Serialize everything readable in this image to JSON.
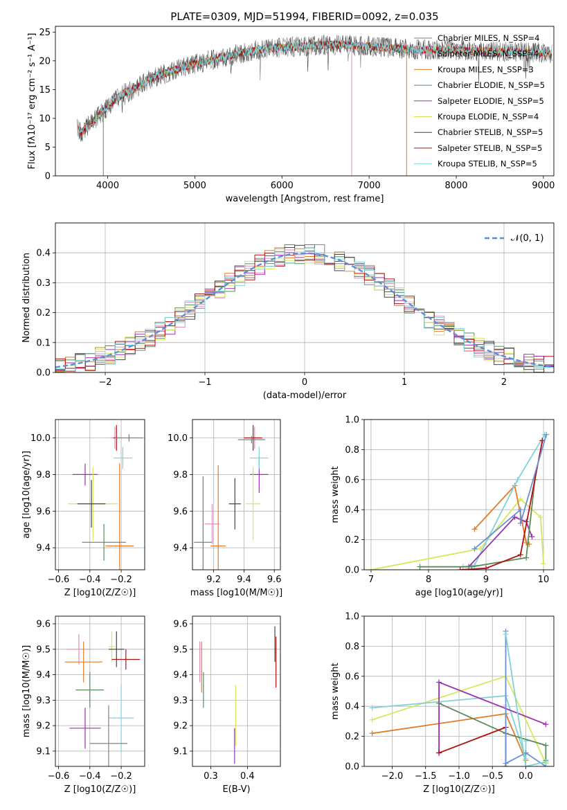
{
  "figure": {
    "title": "PLATE=0309, MJD=51994, FIBERID=0092, z=0.035"
  },
  "series_colors": [
    "#808080",
    "#e78ac3",
    "#e07b25",
    "#5a8a5a",
    "#9b30b0",
    "#d4e85a",
    "#444444",
    "#b01010",
    "#7fd3d8"
  ],
  "chart_data": [
    {
      "type": "line",
      "panel": "spectrum",
      "xlabel": "wavelength [Angstrom, rest frame]",
      "ylabel": "Flux [fλ10⁻¹⁷ erg cm⁻² s⁻¹ A⁻¹]",
      "xlim": [
        3400,
        9120
      ],
      "ylim": [
        0,
        26
      ],
      "xticks": [
        4000,
        5000,
        6000,
        7000,
        8000,
        9000
      ],
      "yticks": [
        0,
        5,
        10,
        15,
        20,
        25
      ],
      "continuum": {
        "x": [
          3650,
          3700,
          3800,
          3900,
          4000,
          4100,
          4200,
          4300,
          4400,
          4500,
          4700,
          4900,
          5100,
          5300,
          5500,
          5700,
          5900,
          6100,
          6300,
          6500,
          6700,
          6900,
          7100,
          7300,
          7500,
          7700,
          8000,
          8500,
          9000,
          9100
        ],
        "y": [
          8.5,
          7.5,
          9.0,
          10.5,
          12.0,
          13.5,
          14.5,
          15.0,
          16.0,
          17.0,
          18.0,
          19.0,
          19.8,
          20.5,
          21.2,
          21.8,
          22.2,
          22.4,
          22.6,
          22.8,
          22.8,
          22.6,
          22.4,
          22.2,
          22.0,
          21.9,
          21.8,
          21.6,
          21.4,
          21.3
        ]
      },
      "legend": [
        "Chabrier MILES, N_SSP=4",
        "Salpeter MILES, N_SSP=4",
        "Kroupa MILES, N_SSP=3",
        "Chabrier ELODIE, N_SSP=5",
        "Salpeter ELODIE, N_SSP=5",
        "Kroupa ELODIE, N_SSP=4",
        "Chabrier STELIB, N_SSP=5",
        "Salpeter STELIB, N_SSP=5",
        "Kroupa STELIB, N_SSP=5"
      ]
    },
    {
      "type": "line",
      "panel": "residuals",
      "xlabel": "(data-model)/error",
      "ylabel": "Normed distribution",
      "xlim": [
        -2.5,
        2.5
      ],
      "ylim": [
        0,
        0.5
      ],
      "xticks": [
        -2,
        -1,
        0,
        1,
        2
      ],
      "yticks": [
        0.0,
        0.1,
        0.2,
        0.3,
        0.4
      ],
      "legend": [
        "𝒩(0, 1)"
      ],
      "gaussian": {
        "mean": 0,
        "sigma": 1
      }
    },
    {
      "type": "scatter",
      "panel": "age-vs-Z",
      "xlabel": "Z [log10(Z/Z☉)]",
      "ylabel": "age  [log10(age/yr)]",
      "xlim": [
        -0.62,
        -0.05
      ],
      "ylim": [
        9.28,
        10.1
      ],
      "xticks": [
        -0.6,
        -0.4,
        -0.2
      ],
      "yticks": [
        9.4,
        9.6,
        9.8,
        10.0
      ],
      "points": [
        {
          "x": -0.24,
          "y": 10.0,
          "ex": 0.03,
          "ey": 0.06
        },
        {
          "x": -0.21,
          "y": 9.41,
          "ex": 0.09,
          "ey": 0.45
        },
        {
          "x": -0.31,
          "y": 9.43,
          "ex": 0.14,
          "ey": 0.1
        },
        {
          "x": -0.43,
          "y": 9.8,
          "ex": 0.08,
          "ey": 0.06
        },
        {
          "x": -0.38,
          "y": 9.64,
          "ex": 0.16,
          "ey": 0.2
        },
        {
          "x": -0.39,
          "y": 9.64,
          "ex": 0.09,
          "ey": 0.13
        },
        {
          "x": -0.23,
          "y": 10.0,
          "ex": 0.02,
          "ey": 0.07
        },
        {
          "x": -0.19,
          "y": 9.89,
          "ex": 0.06,
          "ey": 0.06
        },
        {
          "x": -0.15,
          "y": 10.0,
          "ex": 0.09,
          "ey": 0.02
        }
      ]
    },
    {
      "type": "scatter",
      "panel": "age-vs-mass",
      "xlabel": "mass [log10(M/M☉)]",
      "ylabel": "",
      "xlim": [
        9.06,
        9.64
      ],
      "ylim": [
        9.28,
        10.1
      ],
      "xticks": [
        9.2,
        9.4,
        9.6
      ],
      "yticks": [
        9.4,
        9.6,
        9.8,
        10.0
      ],
      "points": [
        {
          "x": 9.47,
          "y": 10.0,
          "ex": 0.02,
          "ey": 0.06
        },
        {
          "x": 9.23,
          "y": 9.41,
          "ex": 0.05,
          "ey": 0.44
        },
        {
          "x": 9.13,
          "y": 9.43,
          "ex": 0.06,
          "ey": 0.36
        },
        {
          "x": 9.5,
          "y": 9.8,
          "ex": 0.06,
          "ey": 0.1
        },
        {
          "x": 9.46,
          "y": 9.64,
          "ex": 0.05,
          "ey": 0.2
        },
        {
          "x": 9.34,
          "y": 9.64,
          "ex": 0.04,
          "ey": 0.14
        },
        {
          "x": 9.46,
          "y": 10.0,
          "ex": 0.06,
          "ey": 0.07
        },
        {
          "x": 9.5,
          "y": 9.89,
          "ex": 0.06,
          "ey": 0.06
        },
        {
          "x": 9.45,
          "y": 9.99,
          "ex": 0.09,
          "ey": 0.02
        },
        {
          "x": 9.19,
          "y": 9.53,
          "ex": 0.05,
          "ey": 0.11
        }
      ]
    },
    {
      "type": "line",
      "panel": "mass-weight-vs-age",
      "xlabel": "age  [log10(age/yr)]",
      "ylabel": "mass weight",
      "xlim": [
        6.88,
        10.18
      ],
      "ylim": [
        0,
        1
      ],
      "xticks": [
        7,
        8,
        9,
        10
      ],
      "yticks": [
        0.0,
        0.2,
        0.4,
        0.6,
        0.8,
        1.0
      ],
      "series": [
        {
          "x": [
            7.0,
            8.9,
            9.6,
            9.95,
            10.0
          ],
          "y": [
            0.0,
            0.14,
            0.47,
            0.35,
            0.04
          ]
        },
        {
          "x": [
            8.8,
            9.5,
            9.7,
            9.75
          ],
          "y": [
            0.27,
            0.56,
            0.18,
            0.17
          ]
        },
        {
          "x": [
            8.6,
            8.8,
            9.55,
            10.02
          ],
          "y": [
            0.02,
            0.03,
            0.6,
            0.9
          ]
        },
        {
          "x": [
            8.7,
            9.5,
            9.7,
            9.8
          ],
          "y": [
            0.02,
            0.35,
            0.32,
            0.22
          ]
        },
        {
          "x": [
            7.85,
            8.75,
            9.7,
            9.85
          ],
          "y": [
            0.02,
            0.02,
            0.08,
            0.6
          ]
        },
        {
          "x": [
            8.55,
            9.0,
            9.6,
            9.98
          ],
          "y": [
            0.0,
            0.01,
            0.1,
            0.86
          ]
        },
        {
          "x": [
            8.8,
            9.6,
            9.6,
            10.05
          ],
          "y": [
            0.14,
            0.4,
            0.31,
            0.9
          ]
        }
      ]
    },
    {
      "type": "scatter",
      "panel": "mass-vs-Z",
      "xlabel": "Z [log10(Z/Z☉)]",
      "ylabel": "mass [log10(M/M☉)]",
      "xlim": [
        -0.62,
        -0.05
      ],
      "ylim": [
        9.04,
        9.63
      ],
      "xticks": [
        -0.6,
        -0.4,
        -0.2
      ],
      "yticks": [
        9.1,
        9.2,
        9.3,
        9.4,
        9.5,
        9.6
      ],
      "points": [
        {
          "x": -0.47,
          "y": 9.5,
          "ex": 0.08,
          "ey": 0.06
        },
        {
          "x": -0.44,
          "y": 9.45,
          "ex": 0.12,
          "ey": 0.08
        },
        {
          "x": -0.4,
          "y": 9.34,
          "ex": 0.09,
          "ey": 0.07
        },
        {
          "x": -0.43,
          "y": 9.19,
          "ex": 0.1,
          "ey": 0.08
        },
        {
          "x": -0.26,
          "y": 9.51,
          "ex": 0.02,
          "ey": 0.06
        },
        {
          "x": -0.23,
          "y": 9.5,
          "ex": 0.05,
          "ey": 0.07
        },
        {
          "x": -0.17,
          "y": 9.46,
          "ex": 0.09,
          "ey": 0.04
        },
        {
          "x": -0.2,
          "y": 9.23,
          "ex": 0.08,
          "ey": 0.13
        },
        {
          "x": -0.28,
          "y": 9.13,
          "ex": 0.12,
          "ey": 0.15
        }
      ]
    },
    {
      "type": "scatter",
      "panel": "mass-vs-EBV",
      "xlabel": "E(B-V)",
      "ylabel": "",
      "xlim": [
        0.25,
        0.49
      ],
      "ylim": [
        9.04,
        9.63
      ],
      "xticks": [
        0.3,
        0.4
      ],
      "yticks": [
        9.1,
        9.2,
        9.3,
        9.4,
        9.5,
        9.6
      ],
      "points": [
        {
          "x": 0.27,
          "y": 9.45,
          "ey": 0.08
        },
        {
          "x": 0.275,
          "y": 9.43,
          "ey": 0.1
        },
        {
          "x": 0.28,
          "y": 9.34,
          "ey": 0.07
        },
        {
          "x": 0.365,
          "y": 9.12,
          "ey": 0.07
        },
        {
          "x": 0.368,
          "y": 9.24,
          "ey": 0.12
        },
        {
          "x": 0.475,
          "y": 9.52,
          "ey": 0.07
        },
        {
          "x": 0.478,
          "y": 9.45,
          "ey": 0.1
        }
      ]
    },
    {
      "type": "line",
      "panel": "mass-weight-vs-Z",
      "xlabel": "Z [log10(Z/Z☉)]",
      "ylabel": "mass weight",
      "xlim": [
        -2.42,
        0.42
      ],
      "ylim": [
        0,
        1
      ],
      "xticks": [
        -2.0,
        -1.5,
        -1.0,
        -0.5,
        0.0
      ],
      "yticks": [
        0.0,
        0.2,
        0.4,
        0.6,
        0.8,
        1.0
      ],
      "series": [
        {
          "x": [
            -2.3,
            -0.3,
            0.3
          ],
          "y": [
            0.31,
            0.6,
            0.02
          ]
        },
        {
          "x": [
            -2.3,
            -0.3,
            0.0
          ],
          "y": [
            0.22,
            0.35,
            0.04
          ]
        },
        {
          "x": [
            -2.3,
            -0.3,
            0.0,
            0.0
          ],
          "y": [
            0.39,
            0.47,
            0.05,
            0.17
          ]
        },
        {
          "x": [
            -1.3,
            -1.3,
            0.3
          ],
          "y": [
            0.09,
            0.56,
            0.28
          ]
        },
        {
          "x": [
            -1.3,
            -0.3,
            0.3,
            0.3
          ],
          "y": [
            0.42,
            0.22,
            0.14,
            0.04
          ]
        },
        {
          "x": [
            -1.3,
            -0.3,
            -0.3
          ],
          "y": [
            0.09,
            0.26,
            0.0
          ]
        },
        {
          "x": [
            -0.3,
            -0.3,
            0.0,
            0.3
          ],
          "y": [
            0.9,
            0.02,
            0.09,
            0.0
          ]
        },
        {
          "x": [
            -0.3,
            0.0,
            0.3
          ],
          "y": [
            0.88,
            0.0,
            0.03
          ]
        }
      ]
    }
  ]
}
